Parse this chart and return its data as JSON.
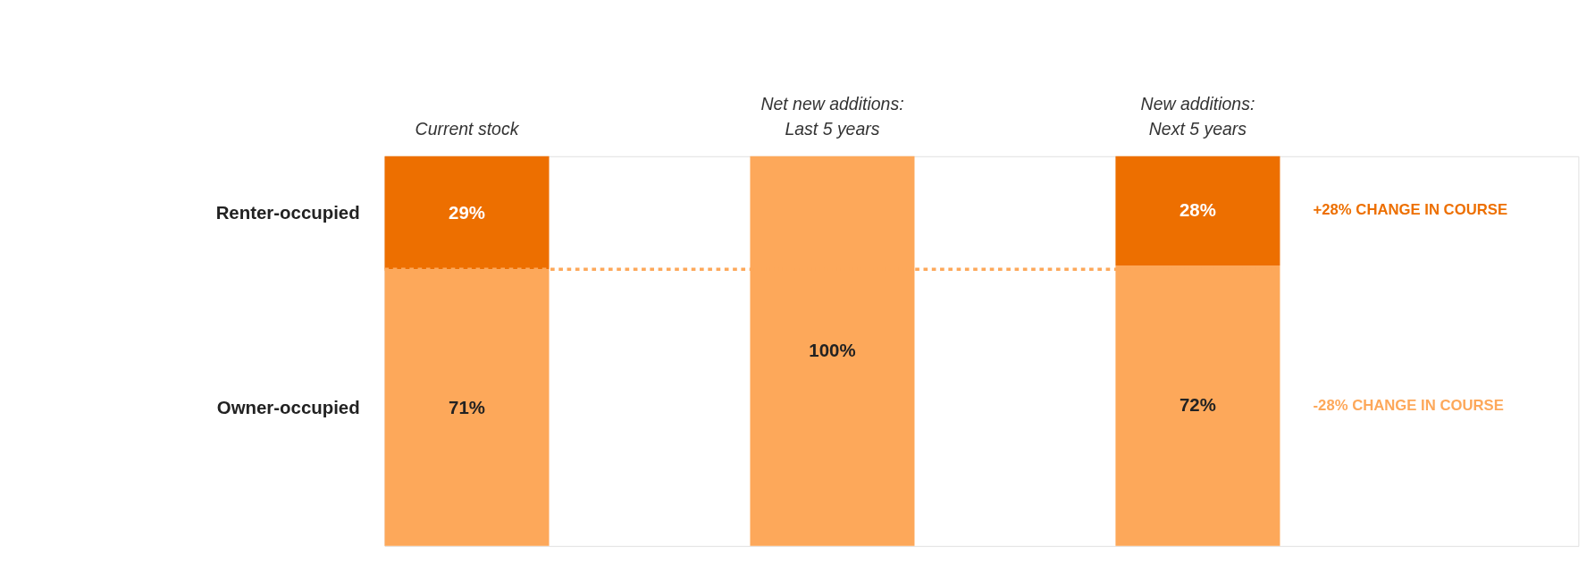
{
  "chart_data": {
    "type": "bar",
    "stacked": true,
    "categories": [
      "Current stock",
      "Net new additions:\nLast 5 years",
      "New additions:\nNext 5 years"
    ],
    "series": [
      {
        "name": "Owner-occupied",
        "color": "#fda85a",
        "values": [
          71,
          100,
          72
        ],
        "value_labels": [
          "71%",
          "100%",
          "72%"
        ]
      },
      {
        "name": "Renter-occupied",
        "color": "#ed6f00",
        "values": [
          29,
          null,
          28
        ],
        "value_labels": [
          "29%",
          null,
          "28%"
        ]
      }
    ],
    "ylim": [
      0,
      100
    ],
    "ref_lines": [
      {
        "axis": "y",
        "value": 71,
        "color": "#fda85a",
        "line_style": "dotted"
      }
    ],
    "annotations": [
      "+28% CHANGE IN COURSE",
      "-28% CHANGE IN COURSE"
    ]
  }
}
